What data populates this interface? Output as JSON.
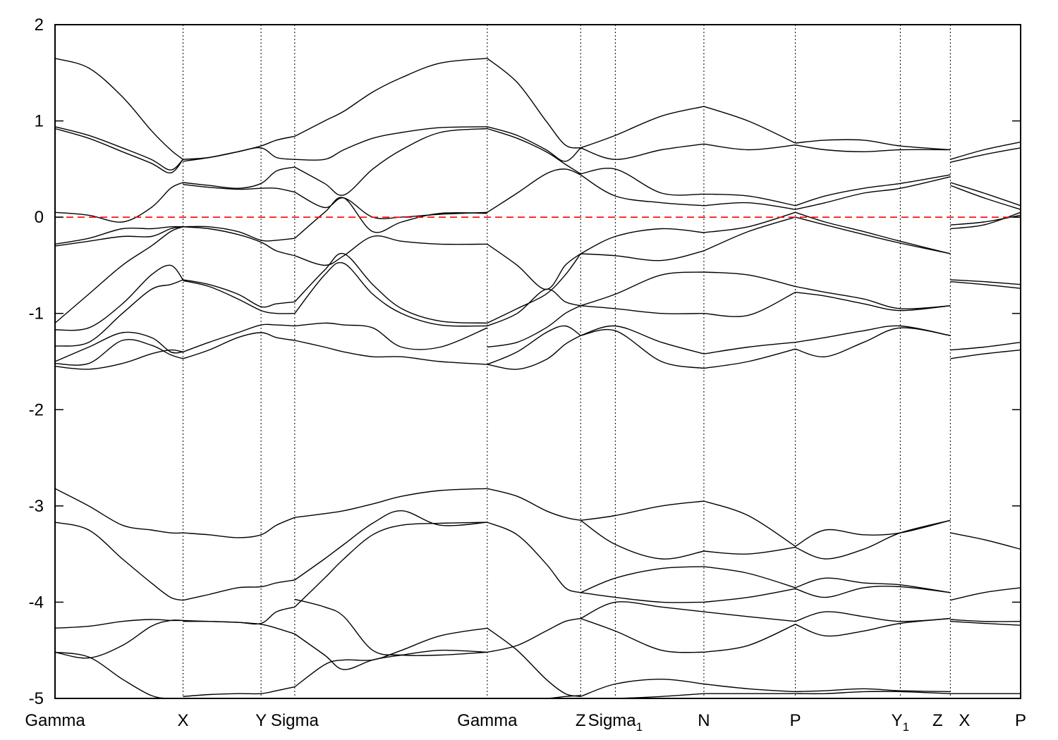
{
  "chart_data": {
    "type": "line",
    "title": "",
    "xlabel": "",
    "ylabel": "",
    "ylim": [
      -5,
      2
    ],
    "yticks": [
      -5,
      -4,
      -3,
      -2,
      -1,
      0,
      1,
      2
    ],
    "fermi_level": 0,
    "fermi_color": "#ff0000",
    "line_color": "#000000",
    "high_symmetry_points": [
      {
        "label": "Gamma",
        "sub": "",
        "k": 0.0
      },
      {
        "label": "X",
        "sub": "",
        "k": 1.33
      },
      {
        "label": "Y",
        "sub": "",
        "k": 2.14
      },
      {
        "label": "Sigma",
        "sub": "",
        "k": 2.49
      },
      {
        "label": "Gamma",
        "sub": "",
        "k": 4.49
      },
      {
        "label": "Z",
        "sub": "",
        "k": 5.46
      },
      {
        "label": "Sigma",
        "sub": "1",
        "k": 5.82
      },
      {
        "label": "N",
        "sub": "",
        "k": 6.74
      },
      {
        "label": "P",
        "sub": "",
        "k": 7.69
      },
      {
        "label": "Y",
        "sub": "1",
        "k": 8.78
      },
      {
        "label": "Z",
        "sub": "",
        "k": 9.3
      },
      {
        "label": "X",
        "sub": "",
        "k": 9.3
      },
      {
        "label": "P",
        "sub": "",
        "k": 10.03
      }
    ],
    "segments": [
      {
        "x": [
          0,
          0.35,
          0.7,
          1.0,
          1.2,
          1.33
        ],
        "bands": [
          [
            1.65,
            1.55,
            1.25,
            0.9,
            0.7,
            0.6
          ],
          [
            0.94,
            0.85,
            0.72,
            0.6,
            0.49,
            0.6
          ],
          [
            0.92,
            0.82,
            0.68,
            0.56,
            0.46,
            0.6
          ],
          [
            0.05,
            0.02,
            -0.05,
            0.1,
            0.3,
            0.36
          ],
          [
            -0.28,
            -0.22,
            -0.12,
            -0.12,
            -0.1,
            -0.1
          ],
          [
            -0.3,
            -0.25,
            -0.2,
            -0.2,
            -0.12,
            -0.1
          ],
          [
            -1.1,
            -0.8,
            -0.5,
            -0.3,
            -0.15,
            -0.1
          ],
          [
            -1.17,
            -1.15,
            -0.9,
            -0.6,
            -0.5,
            -0.65
          ],
          [
            -1.34,
            -1.3,
            -1.0,
            -0.75,
            -0.7,
            -0.65
          ],
          [
            -1.5,
            -1.35,
            -1.2,
            -1.25,
            -1.4,
            -1.4
          ],
          [
            -1.52,
            -1.52,
            -1.28,
            -1.33,
            -1.43,
            -1.47
          ],
          [
            -1.55,
            -1.58,
            -1.52,
            -1.42,
            -1.38,
            -1.4
          ],
          [
            -2.82,
            -3.0,
            -3.2,
            -3.25,
            -3.28,
            -3.28
          ],
          [
            -3.17,
            -3.25,
            -3.55,
            -3.8,
            -3.95,
            -3.98
          ],
          [
            -4.27,
            -4.25,
            -4.2,
            -4.18,
            -4.19,
            -4.19
          ],
          [
            -4.52,
            -4.58,
            -4.45,
            -4.25,
            -4.19,
            -4.19
          ],
          [
            -4.52,
            -4.57,
            -4.8,
            -4.97,
            -5.0,
            -5.0
          ]
        ]
      },
      {
        "x": [
          1.33,
          1.6,
          1.9,
          2.14,
          2.3,
          2.49
        ],
        "bands": [
          [
            0.6,
            0.62,
            0.68,
            0.74,
            0.8,
            0.84
          ],
          [
            0.58,
            0.62,
            0.68,
            0.72,
            0.62,
            0.6
          ],
          [
            0.36,
            0.33,
            0.3,
            0.35,
            0.48,
            0.52
          ],
          [
            0.34,
            0.31,
            0.29,
            0.3,
            0.3,
            0.26
          ],
          [
            -0.1,
            -0.1,
            -0.15,
            -0.24,
            -0.24,
            -0.22
          ],
          [
            -0.1,
            -0.12,
            -0.18,
            -0.26,
            -0.35,
            -0.4
          ],
          [
            -0.65,
            -0.7,
            -0.8,
            -0.93,
            -0.9,
            -0.88
          ],
          [
            -0.66,
            -0.72,
            -0.85,
            -0.97,
            -1.0,
            -1.0
          ],
          [
            -1.4,
            -1.3,
            -1.2,
            -1.12,
            -1.12,
            -1.13
          ],
          [
            -1.47,
            -1.38,
            -1.25,
            -1.2,
            -1.25,
            -1.28
          ],
          [
            -3.28,
            -3.3,
            -3.33,
            -3.3,
            -3.2,
            -3.12
          ],
          [
            -3.98,
            -3.92,
            -3.85,
            -3.84,
            -3.8,
            -3.77
          ],
          [
            -4.19,
            -4.2,
            -4.21,
            -4.22,
            -4.1,
            -4.05
          ],
          [
            -4.2,
            -4.2,
            -4.21,
            -4.23,
            -4.27,
            -4.33
          ],
          [
            -4.98,
            -4.96,
            -4.95,
            -4.95,
            -4.92,
            -4.88
          ]
        ]
      },
      {
        "x": [
          2.49,
          2.8,
          3.0,
          3.3,
          3.6,
          4.0,
          4.49
        ],
        "bands": [
          [
            0.84,
            1.0,
            1.1,
            1.3,
            1.45,
            1.6,
            1.65
          ],
          [
            0.6,
            0.6,
            0.7,
            0.82,
            0.88,
            0.93,
            0.94
          ],
          [
            0.52,
            0.35,
            0.23,
            0.5,
            0.7,
            0.88,
            0.92
          ],
          [
            0.26,
            0.1,
            0.2,
            0.0,
            0.0,
            0.03,
            0.05
          ],
          [
            -0.22,
            0.05,
            0.2,
            -0.15,
            -0.05,
            0.04,
            0.04
          ],
          [
            -0.4,
            -0.5,
            -0.4,
            -0.2,
            -0.25,
            -0.28,
            -0.28
          ],
          [
            -0.88,
            -0.55,
            -0.38,
            -0.7,
            -0.95,
            -1.08,
            -1.1
          ],
          [
            -1.0,
            -0.6,
            -0.48,
            -0.8,
            -1.0,
            -1.12,
            -1.13
          ],
          [
            -1.13,
            -1.1,
            -1.12,
            -1.15,
            -1.35,
            -1.35,
            -1.15
          ],
          [
            -1.28,
            -1.35,
            -1.4,
            -1.45,
            -1.45,
            -1.5,
            -1.53
          ],
          [
            -3.12,
            -3.08,
            -3.05,
            -2.98,
            -2.9,
            -2.84,
            -2.82
          ],
          [
            -3.77,
            -3.55,
            -3.4,
            -3.18,
            -3.05,
            -3.2,
            -3.17
          ],
          [
            -4.05,
            -3.75,
            -3.55,
            -3.3,
            -3.2,
            -3.18,
            -3.17
          ],
          [
            -4.33,
            -4.55,
            -4.7,
            -4.6,
            -4.55,
            -4.5,
            -4.52
          ],
          [
            -3.97,
            -4.05,
            -4.15,
            -4.5,
            -4.55,
            -4.55,
            -4.52
          ],
          [
            -4.88,
            -4.65,
            -4.6,
            -4.6,
            -4.5,
            -4.35,
            -4.27
          ]
        ]
      },
      {
        "x": [
          4.49,
          4.8,
          5.1,
          5.3,
          5.46
        ],
        "bands": [
          [
            1.65,
            1.4,
            1.0,
            0.75,
            0.72
          ],
          [
            0.94,
            0.85,
            0.7,
            0.58,
            0.72
          ],
          [
            0.92,
            0.82,
            0.68,
            0.55,
            0.45
          ],
          [
            0.05,
            0.25,
            0.45,
            0.5,
            0.44
          ],
          [
            -0.28,
            -0.5,
            -0.75,
            -0.5,
            -0.38
          ],
          [
            -1.1,
            -0.95,
            -0.8,
            -0.6,
            -0.38
          ],
          [
            -1.13,
            -1.0,
            -0.75,
            -0.88,
            -0.92
          ],
          [
            -1.35,
            -1.3,
            -1.15,
            -1.0,
            -0.92
          ],
          [
            -1.53,
            -1.58,
            -1.48,
            -1.32,
            -1.23
          ],
          [
            -1.53,
            -1.4,
            -1.2,
            -1.13,
            -1.23
          ],
          [
            -2.82,
            -2.9,
            -3.05,
            -3.12,
            -3.15
          ],
          [
            -3.17,
            -3.3,
            -3.6,
            -3.85,
            -3.9
          ],
          [
            -4.52,
            -4.45,
            -4.3,
            -4.2,
            -4.17
          ],
          [
            -4.27,
            -4.5,
            -4.8,
            -4.95,
            -4.98
          ],
          [
            -5.0,
            -5.0,
            -5.0,
            -4.98,
            -4.97
          ]
        ]
      },
      {
        "x": [
          5.46,
          5.82,
          6.3,
          6.74
        ],
        "bands": [
          [
            0.72,
            0.85,
            1.05,
            1.15
          ],
          [
            0.72,
            0.6,
            0.7,
            0.76
          ],
          [
            0.45,
            0.5,
            0.25,
            0.24
          ],
          [
            0.44,
            0.22,
            0.15,
            0.12
          ],
          [
            -0.38,
            -0.2,
            -0.12,
            -0.16
          ],
          [
            -0.38,
            -0.4,
            -0.45,
            -0.35
          ],
          [
            -0.92,
            -0.8,
            -0.6,
            -0.57
          ],
          [
            -0.92,
            -0.95,
            -1.0,
            -1.0
          ],
          [
            -1.23,
            -1.13,
            -1.3,
            -1.42
          ],
          [
            -1.23,
            -1.18,
            -1.5,
            -1.57
          ],
          [
            -3.15,
            -3.1,
            -3.0,
            -2.95
          ],
          [
            -3.15,
            -3.4,
            -3.55,
            -3.47
          ],
          [
            -3.9,
            -3.75,
            -3.65,
            -3.63
          ],
          [
            -3.9,
            -3.95,
            -4.0,
            -4.0
          ],
          [
            -4.17,
            -4.0,
            -4.05,
            -4.1
          ],
          [
            -4.17,
            -4.3,
            -4.5,
            -4.52
          ],
          [
            -4.98,
            -4.85,
            -4.8,
            -4.85
          ],
          [
            -5.0,
            -5.0,
            -4.98,
            -4.95
          ]
        ]
      },
      {
        "x": [
          6.74,
          7.2,
          7.69
        ],
        "bands": [
          [
            1.15,
            1.0,
            0.77
          ],
          [
            0.76,
            0.7,
            0.75
          ],
          [
            0.24,
            0.22,
            0.12
          ],
          [
            0.12,
            0.15,
            0.08
          ],
          [
            -0.16,
            -0.1,
            0.05
          ],
          [
            -0.35,
            -0.15,
            0.0
          ],
          [
            -0.57,
            -0.6,
            -0.72
          ],
          [
            -1.0,
            -1.02,
            -0.78
          ],
          [
            -1.42,
            -1.35,
            -1.3
          ],
          [
            -1.57,
            -1.5,
            -1.37
          ],
          [
            -2.95,
            -3.1,
            -3.42
          ],
          [
            -3.47,
            -3.5,
            -3.43
          ],
          [
            -3.63,
            -3.7,
            -3.85
          ],
          [
            -4.0,
            -3.95,
            -3.86
          ],
          [
            -4.1,
            -4.15,
            -4.2
          ],
          [
            -4.52,
            -4.45,
            -4.23
          ],
          [
            -4.85,
            -4.9,
            -4.93
          ],
          [
            -4.95,
            -4.95,
            -4.95
          ]
        ]
      },
      {
        "x": [
          7.69,
          8.0,
          8.4,
          8.78,
          9.3
        ],
        "bands": [
          [
            0.77,
            0.8,
            0.8,
            0.74,
            0.7
          ],
          [
            0.75,
            0.7,
            0.68,
            0.7,
            0.7
          ],
          [
            0.12,
            0.22,
            0.3,
            0.35,
            0.44
          ],
          [
            0.08,
            0.15,
            0.25,
            0.3,
            0.42
          ],
          [
            0.05,
            -0.05,
            -0.15,
            -0.25,
            -0.38
          ],
          [
            0.0,
            -0.08,
            -0.18,
            -0.27,
            -0.38
          ],
          [
            -0.72,
            -0.78,
            -0.85,
            -0.95,
            -0.92
          ],
          [
            -0.78,
            -0.82,
            -0.9,
            -0.97,
            -0.92
          ],
          [
            -1.3,
            -1.25,
            -1.18,
            -1.13,
            -1.23
          ],
          [
            -1.37,
            -1.45,
            -1.3,
            -1.15,
            -1.23
          ],
          [
            -3.42,
            -3.25,
            -3.3,
            -3.28,
            -3.15
          ],
          [
            -3.43,
            -3.55,
            -3.45,
            -3.28,
            -3.15
          ],
          [
            -3.85,
            -3.75,
            -3.8,
            -3.82,
            -3.9
          ],
          [
            -3.86,
            -3.95,
            -3.85,
            -3.84,
            -3.9
          ],
          [
            -4.2,
            -4.1,
            -4.15,
            -4.2,
            -4.17
          ],
          [
            -4.23,
            -4.35,
            -4.3,
            -4.22,
            -4.17
          ],
          [
            -4.93,
            -4.92,
            -4.9,
            -4.92,
            -4.93
          ],
          [
            -4.95,
            -4.95,
            -4.93,
            -4.93,
            -4.95
          ]
        ]
      },
      {
        "x": [
          9.3,
          9.65,
          10.03
        ],
        "bands": [
          [
            0.6,
            0.7,
            0.78
          ],
          [
            0.57,
            0.65,
            0.72
          ],
          [
            0.36,
            0.25,
            0.12
          ],
          [
            0.33,
            0.2,
            0.08
          ],
          [
            -0.08,
            -0.05,
            0.02
          ],
          [
            -0.12,
            -0.08,
            0.05
          ],
          [
            -0.65,
            -0.67,
            -0.7
          ],
          [
            -0.67,
            -0.7,
            -0.74
          ],
          [
            -1.38,
            -1.35,
            -1.3
          ],
          [
            -1.47,
            -1.42,
            -1.38
          ],
          [
            -3.28,
            -3.35,
            -3.45
          ],
          [
            -3.98,
            -3.9,
            -3.85
          ],
          [
            -4.18,
            -4.2,
            -4.2
          ],
          [
            -4.2,
            -4.22,
            -4.24
          ],
          [
            -4.95,
            -4.95,
            -4.95
          ]
        ]
      }
    ]
  }
}
